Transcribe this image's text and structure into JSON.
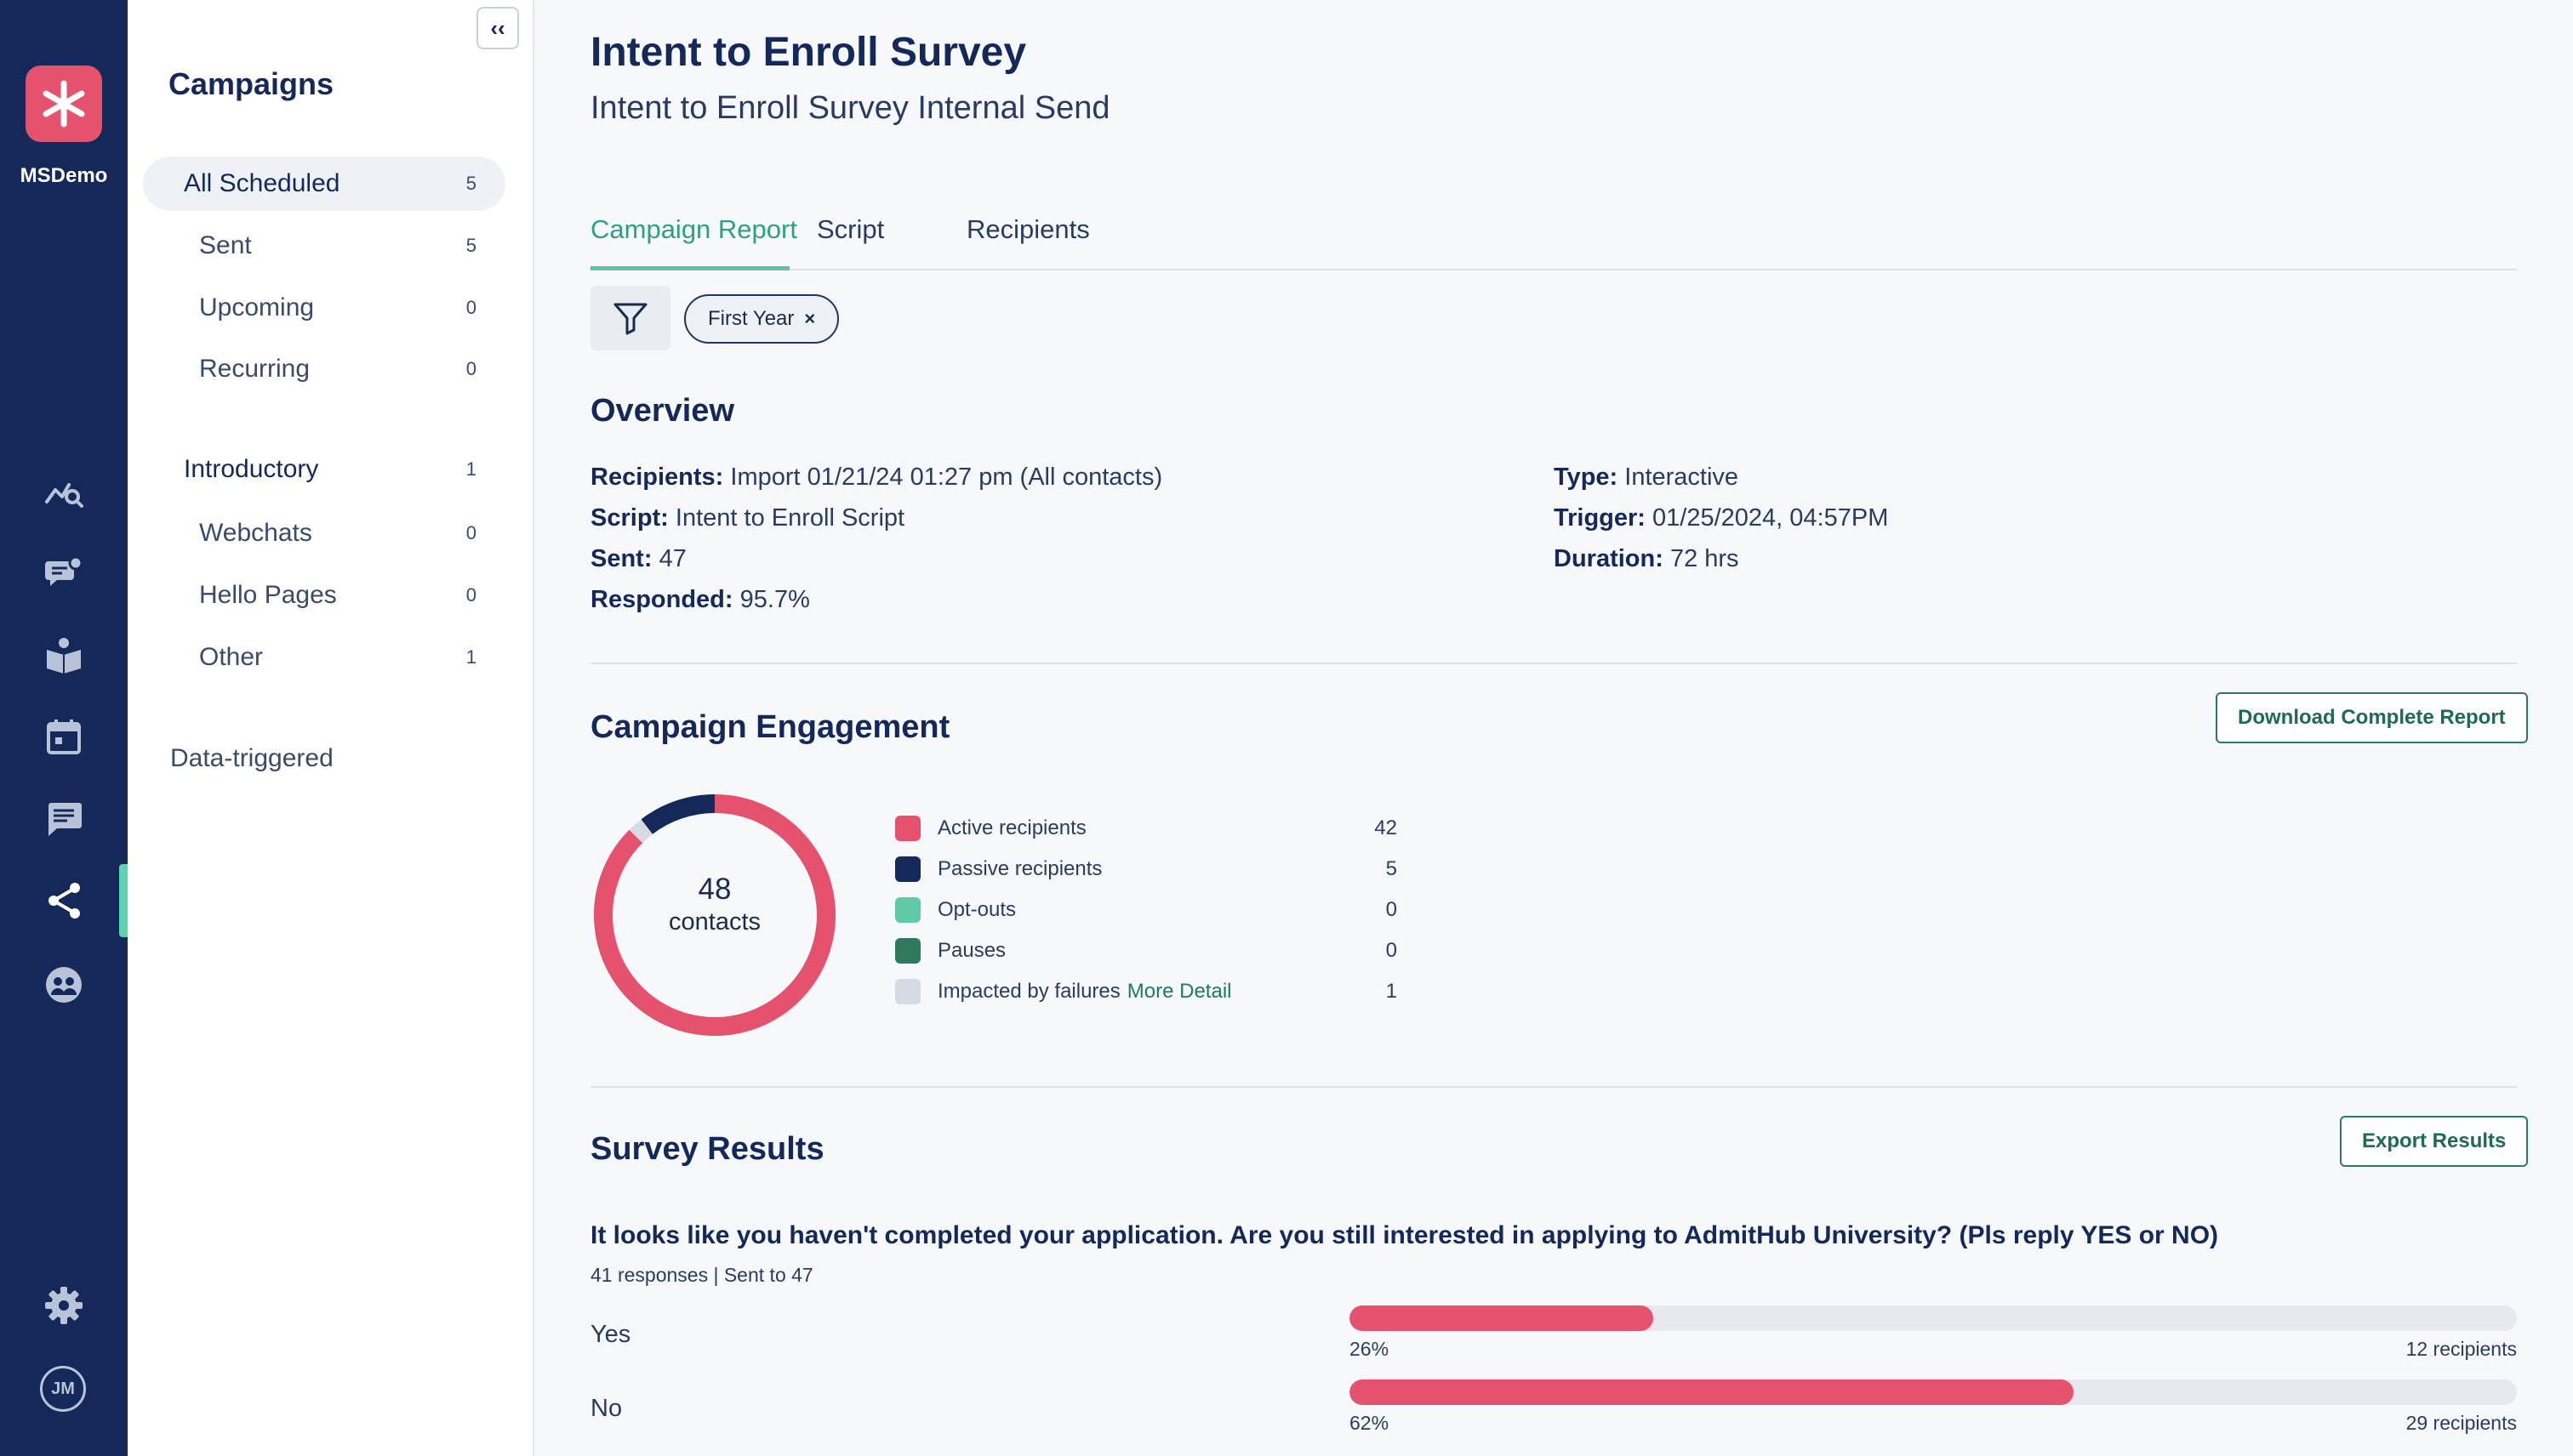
{
  "org": {
    "name": "MSDemo"
  },
  "user": {
    "initials": "JM"
  },
  "sidebar": {
    "title": "Campaigns",
    "items": [
      {
        "label": "All Scheduled",
        "count": "5"
      },
      {
        "label": "Sent",
        "count": "5"
      },
      {
        "label": "Upcoming",
        "count": "0"
      },
      {
        "label": "Recurring",
        "count": "0"
      },
      {
        "label": "Introductory",
        "count": "1"
      },
      {
        "label": "Webchats",
        "count": "0"
      },
      {
        "label": "Hello Pages",
        "count": "0"
      },
      {
        "label": "Other",
        "count": "1"
      }
    ],
    "data_triggered": "Data-triggered"
  },
  "header": {
    "title": "Intent to Enroll Survey",
    "subtitle": "Intent to Enroll Survey Internal Send"
  },
  "tabs": [
    {
      "label": "Campaign Report"
    },
    {
      "label": "Script"
    },
    {
      "label": "Recipients"
    }
  ],
  "filter": {
    "chip_label": "First Year",
    "chip_remove": "×"
  },
  "overview": {
    "title": "Overview",
    "recipients_label": "Recipients:",
    "recipients_value": "Import 01/21/24 01:27 pm (All contacts)",
    "script_label": "Script:",
    "script_value": "Intent to Enroll Script",
    "sent_label": "Sent:",
    "sent_value": "47",
    "responded_label": "Responded:",
    "responded_value": "95.7%",
    "type_label": "Type:",
    "type_value": "Interactive",
    "trigger_label": "Trigger:",
    "trigger_value": "01/25/2024, 04:57PM",
    "duration_label": "Duration:",
    "duration_value": "72 hrs"
  },
  "engagement": {
    "title": "Campaign Engagement",
    "download_label": "Download Complete Report",
    "total": "48",
    "total_label": "contacts",
    "more_detail": "More Detail",
    "legend": [
      {
        "label": "Active recipients",
        "value": "42",
        "color": "#e4526e"
      },
      {
        "label": "Passive recipients",
        "value": "5",
        "color": "#14295a"
      },
      {
        "label": "Opt-outs",
        "value": "0",
        "color": "#5fc9a6"
      },
      {
        "label": "Pauses",
        "value": "0",
        "color": "#2f7a5e"
      },
      {
        "label": "Impacted by failures",
        "value": "1",
        "color": "#d5dae3"
      }
    ]
  },
  "chart_data": {
    "type": "pie",
    "categories": [
      "Active recipients",
      "Passive recipients",
      "Opt-outs",
      "Pauses",
      "Impacted by failures"
    ],
    "values": [
      42,
      5,
      0,
      0,
      1
    ],
    "colors": [
      "#e4526e",
      "#14295a",
      "#5fc9a6",
      "#2f7a5e",
      "#d5dae3"
    ]
  },
  "survey": {
    "title": "Survey Results",
    "export_label": "Export Results",
    "question": "It looks like you haven't completed your application. Are you still interested in applying to AdmitHub University? (Pls reply YES or NO)",
    "meta": "41 responses | Sent to 47",
    "answers": [
      {
        "label": "Yes",
        "percent_label": "26%",
        "fraction": 0.26,
        "count_label": "12 recipients"
      },
      {
        "label": "No",
        "percent_label": "62%",
        "fraction": 0.62,
        "count_label": "29 recipients"
      }
    ]
  },
  "icons": {
    "analytics": "analytics-icon",
    "conversations": "chat-bubbles-icon",
    "knowledge": "book-icon",
    "calendar": "calendar-icon",
    "messages": "message-icon",
    "campaigns": "share-nodes-icon",
    "contacts": "contacts-icon",
    "settings": "gear-icon"
  }
}
